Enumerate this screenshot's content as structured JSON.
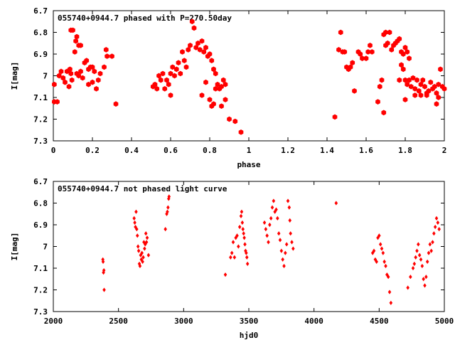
{
  "chart_data": [
    {
      "type": "scatter",
      "title": "055740+0944.7 phased with P=270.50day",
      "xlabel": "phase",
      "ylabel": "I[mag]",
      "xlim": [
        0,
        2
      ],
      "ylim": [
        6.7,
        7.3
      ],
      "y_inverted": true,
      "x_ticks": [
        "0",
        "0.2",
        "0.4",
        "0.6",
        "0.8",
        "1",
        "1.2",
        "1.4",
        "1.6",
        "1.8",
        "2"
      ],
      "y_ticks": [
        "6.7",
        "6.8",
        "6.9",
        "7",
        "7.1",
        "7.2",
        "7.3"
      ],
      "marker": "filled-hexagon",
      "color": "#ff0000",
      "points": [
        [
          0.005,
          7.12
        ],
        [
          0.02,
          7.12
        ],
        [
          0.005,
          7.04
        ],
        [
          0.03,
          7.0
        ],
        [
          0.04,
          6.98
        ],
        [
          0.05,
          7.01
        ],
        [
          0.06,
          7.03
        ],
        [
          0.07,
          6.98
        ],
        [
          0.08,
          7.05
        ],
        [
          0.085,
          6.97
        ],
        [
          0.09,
          6.99
        ],
        [
          0.095,
          7.02
        ],
        [
          0.09,
          6.79
        ],
        [
          0.1,
          6.79
        ],
        [
          0.11,
          6.89
        ],
        [
          0.115,
          6.84
        ],
        [
          0.12,
          6.82
        ],
        [
          0.13,
          6.86
        ],
        [
          0.14,
          6.86
        ],
        [
          0.12,
          6.99
        ],
        [
          0.13,
          7.0
        ],
        [
          0.14,
          6.98
        ],
        [
          0.15,
          7.01
        ],
        [
          0.16,
          6.94
        ],
        [
          0.17,
          6.93
        ],
        [
          0.18,
          6.97
        ],
        [
          0.19,
          6.96
        ],
        [
          0.2,
          6.96
        ],
        [
          0.21,
          6.98
        ],
        [
          0.18,
          7.04
        ],
        [
          0.2,
          7.03
        ],
        [
          0.22,
          7.06
        ],
        [
          0.23,
          7.02
        ],
        [
          0.24,
          6.99
        ],
        [
          0.26,
          6.96
        ],
        [
          0.27,
          6.88
        ],
        [
          0.275,
          6.91
        ],
        [
          0.3,
          6.91
        ],
        [
          0.32,
          7.13
        ],
        [
          0.51,
          7.05
        ],
        [
          0.52,
          7.04
        ],
        [
          0.53,
          7.06
        ],
        [
          0.54,
          7.0
        ],
        [
          0.55,
          7.02
        ],
        [
          0.56,
          6.99
        ],
        [
          0.57,
          7.06
        ],
        [
          0.58,
          7.02
        ],
        [
          0.59,
          7.04
        ],
        [
          0.6,
          7.09
        ],
        [
          0.6,
          6.99
        ],
        [
          0.61,
          6.96
        ],
        [
          0.62,
          7.0
        ],
        [
          0.63,
          6.97
        ],
        [
          0.64,
          6.94
        ],
        [
          0.65,
          6.99
        ],
        [
          0.66,
          6.89
        ],
        [
          0.67,
          6.93
        ],
        [
          0.68,
          6.96
        ],
        [
          0.69,
          6.88
        ],
        [
          0.7,
          6.86
        ],
        [
          0.71,
          6.75
        ],
        [
          0.72,
          6.78
        ],
        [
          0.73,
          6.87
        ],
        [
          0.74,
          6.85
        ],
        [
          0.75,
          6.88
        ],
        [
          0.76,
          6.84
        ],
        [
          0.77,
          6.89
        ],
        [
          0.78,
          6.87
        ],
        [
          0.79,
          6.91
        ],
        [
          0.8,
          6.9
        ],
        [
          0.81,
          6.93
        ],
        [
          0.82,
          6.97
        ],
        [
          0.83,
          6.99
        ],
        [
          0.76,
          7.09
        ],
        [
          0.78,
          7.03
        ],
        [
          0.8,
          7.11
        ],
        [
          0.81,
          7.14
        ],
        [
          0.82,
          7.13
        ],
        [
          0.83,
          7.06
        ],
        [
          0.84,
          7.04
        ],
        [
          0.85,
          7.06
        ],
        [
          0.86,
          7.05
        ],
        [
          0.87,
          7.02
        ],
        [
          0.88,
          7.04
        ],
        [
          0.86,
          7.14
        ],
        [
          0.88,
          7.11
        ],
        [
          0.9,
          7.2
        ],
        [
          0.93,
          7.21
        ],
        [
          0.96,
          7.26
        ],
        [
          1.44,
          7.19
        ],
        [
          1.46,
          6.88
        ],
        [
          1.47,
          6.8
        ],
        [
          1.48,
          6.89
        ],
        [
          1.49,
          6.89
        ],
        [
          1.5,
          6.96
        ],
        [
          1.51,
          6.97
        ],
        [
          1.52,
          6.96
        ],
        [
          1.53,
          6.94
        ],
        [
          1.54,
          7.07
        ],
        [
          1.56,
          6.89
        ],
        [
          1.57,
          6.9
        ],
        [
          1.58,
          6.92
        ],
        [
          1.6,
          6.92
        ],
        [
          1.61,
          6.89
        ],
        [
          1.62,
          6.86
        ],
        [
          1.63,
          6.89
        ],
        [
          1.66,
          7.12
        ],
        [
          1.67,
          7.05
        ],
        [
          1.68,
          7.02
        ],
        [
          1.69,
          7.17
        ],
        [
          1.69,
          6.81
        ],
        [
          1.7,
          6.8
        ],
        [
          1.7,
          6.86
        ],
        [
          1.71,
          6.85
        ],
        [
          1.72,
          6.8
        ],
        [
          1.73,
          6.88
        ],
        [
          1.74,
          6.86
        ],
        [
          1.75,
          6.85
        ],
        [
          1.76,
          6.84
        ],
        [
          1.77,
          6.83
        ],
        [
          1.78,
          6.89
        ],
        [
          1.79,
          6.9
        ],
        [
          1.8,
          6.87
        ],
        [
          1.81,
          6.89
        ],
        [
          1.82,
          6.92
        ],
        [
          1.77,
          7.02
        ],
        [
          1.78,
          6.95
        ],
        [
          1.79,
          6.97
        ],
        [
          1.8,
          7.02
        ],
        [
          1.81,
          7.04
        ],
        [
          1.82,
          7.02
        ],
        [
          1.83,
          7.05
        ],
        [
          1.84,
          7.01
        ],
        [
          1.85,
          7.06
        ],
        [
          1.86,
          7.02
        ],
        [
          1.87,
          7.07
        ],
        [
          1.88,
          7.04
        ],
        [
          1.89,
          7.02
        ],
        [
          1.9,
          7.05
        ],
        [
          1.91,
          7.09
        ],
        [
          1.92,
          7.07
        ],
        [
          1.93,
          7.03
        ],
        [
          1.94,
          7.06
        ],
        [
          1.95,
          7.05
        ],
        [
          1.96,
          7.08
        ],
        [
          1.97,
          7.04
        ],
        [
          1.98,
          6.97
        ],
        [
          1.99,
          7.05
        ],
        [
          2.0,
          7.06
        ],
        [
          1.8,
          7.11
        ],
        [
          1.85,
          7.09
        ],
        [
          1.88,
          7.09
        ],
        [
          1.91,
          7.08
        ],
        [
          1.96,
          7.13
        ],
        [
          1.97,
          7.1
        ]
      ]
    },
    {
      "type": "scatter",
      "title": "055740+0944.7 not phased light curve",
      "xlabel": "hjd0",
      "ylabel": "I[mag]",
      "xlim": [
        2000,
        5000
      ],
      "ylim": [
        6.7,
        7.3
      ],
      "y_inverted": true,
      "x_ticks": [
        "2000",
        "2500",
        "3000",
        "3500",
        "4000",
        "4500",
        "5000"
      ],
      "y_ticks": [
        "6.7",
        "6.8",
        "6.9",
        "7",
        "7.1",
        "7.2",
        "7.3"
      ],
      "marker": "small-diamond",
      "color": "#ff0000",
      "points": [
        [
          2380,
          7.06
        ],
        [
          2382,
          7.07
        ],
        [
          2385,
          7.12
        ],
        [
          2388,
          7.11
        ],
        [
          2390,
          7.2
        ],
        [
          2620,
          6.87
        ],
        [
          2625,
          6.89
        ],
        [
          2630,
          6.91
        ],
        [
          2635,
          6.84
        ],
        [
          2640,
          6.92
        ],
        [
          2645,
          6.95
        ],
        [
          2650,
          7.0
        ],
        [
          2655,
          7.02
        ],
        [
          2660,
          7.08
        ],
        [
          2665,
          7.09
        ],
        [
          2670,
          7.04
        ],
        [
          2675,
          7.06
        ],
        [
          2680,
          7.03
        ],
        [
          2685,
          7.07
        ],
        [
          2690,
          7.05
        ],
        [
          2695,
          6.98
        ],
        [
          2700,
          7.01
        ],
        [
          2705,
          6.99
        ],
        [
          2710,
          6.94
        ],
        [
          2715,
          6.98
        ],
        [
          2720,
          6.96
        ],
        [
          2730,
          7.04
        ],
        [
          2860,
          6.92
        ],
        [
          2870,
          6.85
        ],
        [
          2875,
          6.84
        ],
        [
          2880,
          6.82
        ],
        [
          2885,
          6.78
        ],
        [
          2888,
          6.77
        ],
        [
          3320,
          7.13
        ],
        [
          3360,
          7.05
        ],
        [
          3370,
          7.03
        ],
        [
          3380,
          6.98
        ],
        [
          3390,
          7.05
        ],
        [
          3400,
          6.96
        ],
        [
          3410,
          6.95
        ],
        [
          3420,
          7.0
        ],
        [
          3430,
          6.91
        ],
        [
          3440,
          6.86
        ],
        [
          3445,
          6.84
        ],
        [
          3450,
          6.89
        ],
        [
          3455,
          6.92
        ],
        [
          3460,
          6.94
        ],
        [
          3465,
          6.96
        ],
        [
          3470,
          6.99
        ],
        [
          3475,
          7.02
        ],
        [
          3480,
          7.03
        ],
        [
          3485,
          7.05
        ],
        [
          3490,
          7.08
        ],
        [
          3620,
          6.89
        ],
        [
          3630,
          6.92
        ],
        [
          3640,
          6.95
        ],
        [
          3650,
          6.98
        ],
        [
          3660,
          6.9
        ],
        [
          3670,
          6.87
        ],
        [
          3680,
          6.82
        ],
        [
          3690,
          6.79
        ],
        [
          3700,
          6.84
        ],
        [
          3710,
          6.83
        ],
        [
          3720,
          6.87
        ],
        [
          3730,
          6.94
        ],
        [
          3740,
          6.97
        ],
        [
          3750,
          7.02
        ],
        [
          3760,
          7.06
        ],
        [
          3770,
          7.09
        ],
        [
          3780,
          7.03
        ],
        [
          3790,
          6.99
        ],
        [
          3800,
          6.79
        ],
        [
          3810,
          6.82
        ],
        [
          3815,
          6.88
        ],
        [
          3820,
          6.94
        ],
        [
          3830,
          6.98
        ],
        [
          3840,
          7.01
        ],
        [
          4170,
          6.8
        ],
        [
          4450,
          7.03
        ],
        [
          4460,
          7.02
        ],
        [
          4470,
          7.06
        ],
        [
          4480,
          7.07
        ],
        [
          4490,
          6.96
        ],
        [
          4500,
          6.95
        ],
        [
          4510,
          6.99
        ],
        [
          4520,
          7.01
        ],
        [
          4530,
          7.03
        ],
        [
          4540,
          7.07
        ],
        [
          4550,
          7.09
        ],
        [
          4560,
          7.13
        ],
        [
          4570,
          7.14
        ],
        [
          4580,
          7.21
        ],
        [
          4590,
          7.26
        ],
        [
          4720,
          7.19
        ],
        [
          4740,
          7.14
        ],
        [
          4760,
          7.1
        ],
        [
          4770,
          7.08
        ],
        [
          4780,
          7.05
        ],
        [
          4790,
          7.02
        ],
        [
          4800,
          6.99
        ],
        [
          4810,
          7.04
        ],
        [
          4820,
          7.06
        ],
        [
          4830,
          7.09
        ],
        [
          4840,
          7.15
        ],
        [
          4850,
          7.18
        ],
        [
          4860,
          7.14
        ],
        [
          4870,
          7.07
        ],
        [
          4880,
          7.03
        ],
        [
          4890,
          6.99
        ],
        [
          4900,
          7.02
        ],
        [
          4910,
          6.98
        ],
        [
          4920,
          6.94
        ],
        [
          4930,
          6.91
        ],
        [
          4940,
          6.87
        ],
        [
          4950,
          6.89
        ],
        [
          4960,
          6.92
        ]
      ]
    }
  ]
}
